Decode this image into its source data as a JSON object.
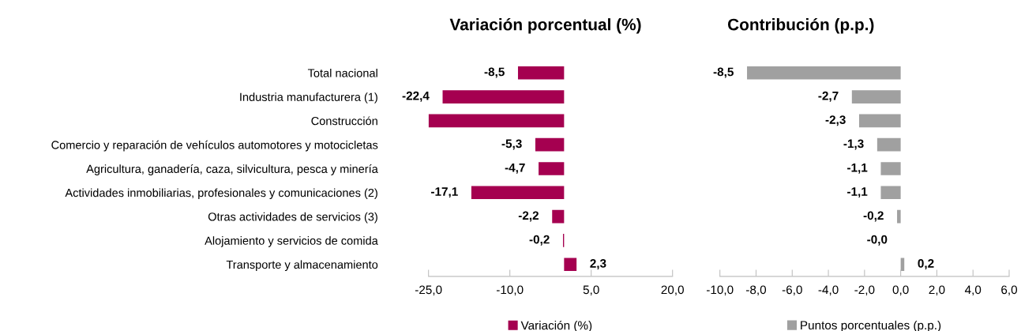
{
  "chart_data": [
    {
      "type": "bar",
      "orientation": "horizontal",
      "title": "Variación porcentual (%)",
      "categories": [
        "Total nacional",
        "Industria manufacturera (1)",
        "Construcción",
        "Comercio y reparación de vehículos automotores y motocicletas",
        "Agricultura, ganadería, caza, silvicultura, pesca y minería",
        "Actividades inmobiliarias, profesionales y comunicaciones (2)",
        "Otras actividades de servicios (3)",
        "Alojamiento y servicios de comida",
        "Transporte y almacenamiento"
      ],
      "series": [
        {
          "name": "Variación (%)",
          "color": "#a50050",
          "values": [
            -8.5,
            -22.4,
            -25.0,
            -5.3,
            -4.7,
            -17.1,
            -2.2,
            -0.2,
            2.3
          ],
          "value_labels": [
            "-8,5",
            "-22,4",
            null,
            "-5,3",
            "-4,7",
            "-17,1",
            "-2,2",
            "-0,2",
            "2,3"
          ]
        }
      ],
      "xlim": [
        -25,
        20
      ],
      "xticks": [
        {
          "value": -25,
          "label": "-25,0"
        },
        {
          "value": -10,
          "label": "-10,0"
        },
        {
          "value": 5,
          "label": "5,0"
        },
        {
          "value": 20,
          "label": "20,0"
        }
      ],
      "grid": false,
      "legend": "bottom"
    },
    {
      "type": "bar",
      "orientation": "horizontal",
      "title": "Contribución (p.p.)",
      "categories": [
        null,
        null,
        null,
        null,
        null,
        null,
        null,
        null,
        null
      ],
      "series": [
        {
          "name": "Puntos porcentuales (p.p.)",
          "color": "#a0a0a0",
          "values": [
            -8.5,
            -2.7,
            -2.3,
            -1.3,
            -1.1,
            -1.1,
            -0.2,
            0.0,
            0.2
          ],
          "value_labels": [
            "-8,5",
            "-2,7",
            "-2,3",
            "-1,3",
            "-1,1",
            "-1,1",
            "-0,2",
            "-0,0",
            "0,2"
          ]
        }
      ],
      "xlim": [
        -10,
        6
      ],
      "xticks": [
        {
          "value": -10,
          "label": "-10,0"
        },
        {
          "value": -8,
          "label": "-8,0"
        },
        {
          "value": -6,
          "label": "-6,0"
        },
        {
          "value": -4,
          "label": "-4,0"
        },
        {
          "value": -2,
          "label": "-2,0"
        },
        {
          "value": 0,
          "label": "0,0"
        },
        {
          "value": 2,
          "label": "2,0"
        },
        {
          "value": 4,
          "label": "4,0"
        },
        {
          "value": 6,
          "label": "6,0"
        }
      ],
      "tick_labels": "x",
      "grid": false,
      "legend": "bottom"
    }
  ]
}
